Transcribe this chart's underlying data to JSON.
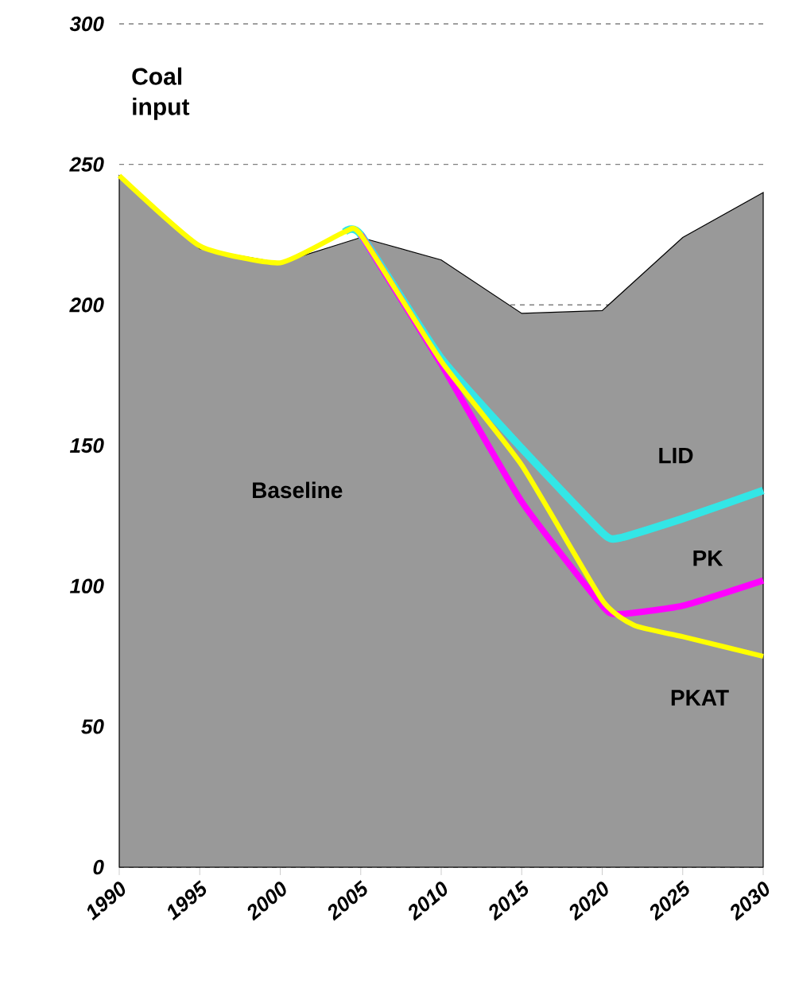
{
  "chart_data": {
    "type": "line",
    "annotations": [
      "Coal input"
    ],
    "xlim": [
      1990,
      2030
    ],
    "xticks": [
      1990,
      1995,
      2000,
      2005,
      2010,
      2015,
      2020,
      2025,
      2030
    ],
    "ylim": [
      0,
      300
    ],
    "yticks": [
      0,
      50,
      100,
      150,
      200,
      250,
      300
    ],
    "grid": "y",
    "series": [
      {
        "name": "Baseline",
        "type": "area",
        "color": "#999999",
        "x": [
          1990,
          1995,
          2000,
          2005,
          2010,
          2015,
          2020,
          2025,
          2030
        ],
        "values": [
          246,
          220,
          215,
          224,
          216,
          197,
          198,
          224,
          240
        ]
      },
      {
        "name": "LID",
        "color": "#33e6e6",
        "x": [
          2004,
          2005,
          2010,
          2015,
          2020,
          2021,
          2025,
          2030
        ],
        "values": [
          226,
          225,
          181,
          149,
          119,
          117,
          124,
          134
        ]
      },
      {
        "name": "PK",
        "color": "#ff00ff",
        "x": [
          2005,
          2010,
          2015,
          2020,
          2021,
          2025,
          2030
        ],
        "values": [
          225,
          179,
          130,
          93,
          90,
          93,
          102
        ]
      },
      {
        "name": "PKAT",
        "color": "#ffff00",
        "x": [
          1990,
          1995,
          2000,
          2004,
          2005,
          2010,
          2015,
          2020,
          2022,
          2025,
          2030
        ],
        "values": [
          246,
          221,
          215,
          226,
          225,
          180,
          143,
          95,
          86,
          82,
          75
        ]
      }
    ]
  }
}
